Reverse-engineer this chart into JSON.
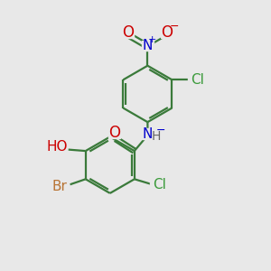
{
  "bg_color": "#e8e8e8",
  "bond_color": "#3a7a3a",
  "bond_lw": 1.6,
  "atom_colors": {
    "O": "#cc0000",
    "N": "#0000cc",
    "Cl": "#3a9a3a",
    "Br": "#b87333",
    "H": "#666666",
    "C": "#3a7a3a"
  }
}
